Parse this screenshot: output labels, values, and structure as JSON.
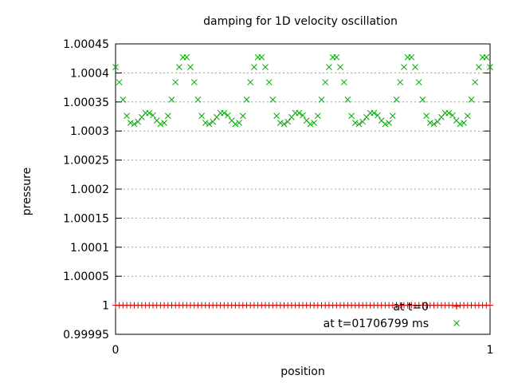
{
  "chart_data": {
    "type": "scatter",
    "title": "damping for 1D velocity oscillation",
    "xlabel": "position",
    "ylabel": "pressure",
    "xlim": [
      0,
      1
    ],
    "ylim": [
      0.99995,
      1.00045
    ],
    "x_ticks": [
      "0",
      "1"
    ],
    "y_ticks": [
      "0.99995",
      "1",
      "1.00005",
      "1.0001",
      "1.00015",
      "1.0002",
      "1.00025",
      "1.0003",
      "1.00035",
      "1.0004",
      "1.00045"
    ],
    "grid": "horizontal dotted",
    "legend_position": "bottom-right",
    "series": [
      {
        "name": "at t=0",
        "marker": "plus",
        "color": "#cc0000",
        "x": [
          0,
          0.01,
          0.02,
          0.03,
          0.04,
          0.05,
          0.06,
          0.07,
          0.08,
          0.09,
          0.1,
          0.11,
          0.12,
          0.13,
          0.14,
          0.15,
          0.16,
          0.17,
          0.18,
          0.19,
          0.2,
          0.21,
          0.22,
          0.23,
          0.24,
          0.25,
          0.26,
          0.27,
          0.28,
          0.29,
          0.3,
          0.31,
          0.32,
          0.33,
          0.34,
          0.35,
          0.36,
          0.37,
          0.38,
          0.39,
          0.4,
          0.41,
          0.42,
          0.43,
          0.44,
          0.45,
          0.46,
          0.47,
          0.48,
          0.49,
          0.5,
          0.51,
          0.52,
          0.53,
          0.54,
          0.55,
          0.56,
          0.57,
          0.58,
          0.59,
          0.6,
          0.61,
          0.62,
          0.63,
          0.64,
          0.65,
          0.66,
          0.67,
          0.68,
          0.69,
          0.7,
          0.71,
          0.72,
          0.73,
          0.74,
          0.75,
          0.76,
          0.77,
          0.78,
          0.79,
          0.8,
          0.81,
          0.82,
          0.83,
          0.84,
          0.85,
          0.86,
          0.87,
          0.88,
          0.89,
          0.9,
          0.91,
          0.92,
          0.93,
          0.94,
          0.95,
          0.96,
          0.97,
          0.98,
          0.99,
          1
        ],
        "y": [
          1,
          1,
          1,
          1,
          1,
          1,
          1,
          1,
          1,
          1,
          1,
          1,
          1,
          1,
          1,
          1,
          1,
          1,
          1,
          1,
          1,
          1,
          1,
          1,
          1,
          1,
          1,
          1,
          1,
          1,
          1,
          1,
          1,
          1,
          1,
          1,
          1,
          1,
          1,
          1,
          1,
          1,
          1,
          1,
          1,
          1,
          1,
          1,
          1,
          1,
          1,
          1,
          1,
          1,
          1,
          1,
          1,
          1,
          1,
          1,
          1,
          1,
          1,
          1,
          1,
          1,
          1,
          1,
          1,
          1,
          1,
          1,
          1,
          1,
          1,
          1,
          1,
          1,
          1,
          1,
          1,
          1,
          1,
          1,
          1,
          1,
          1,
          1,
          1,
          1,
          1,
          1,
          1,
          1,
          1,
          1,
          1,
          1,
          1,
          1,
          1
        ]
      },
      {
        "name": "at t=01706799 ms",
        "marker": "cross",
        "color": "#00aa00",
        "x": [
          0,
          0.01,
          0.02,
          0.03,
          0.04,
          0.05,
          0.06,
          0.07,
          0.08,
          0.09,
          0.1,
          0.11,
          0.12,
          0.13,
          0.14,
          0.15,
          0.16,
          0.17,
          0.18,
          0.19,
          0.2,
          0.21,
          0.22,
          0.23,
          0.24,
          0.25,
          0.26,
          0.27,
          0.28,
          0.29,
          0.3,
          0.31,
          0.32,
          0.33,
          0.34,
          0.35,
          0.36,
          0.37,
          0.38,
          0.39,
          0.4,
          0.41,
          0.42,
          0.43,
          0.44,
          0.45,
          0.46,
          0.47,
          0.48,
          0.49,
          0.5,
          0.51,
          0.52,
          0.53,
          0.54,
          0.55,
          0.56,
          0.57,
          0.58,
          0.59,
          0.6,
          0.61,
          0.62,
          0.63,
          0.64,
          0.65,
          0.66,
          0.67,
          0.68,
          0.69,
          0.7,
          0.71,
          0.72,
          0.73,
          0.74,
          0.75,
          0.76,
          0.77,
          0.78,
          0.79,
          0.8,
          0.81,
          0.82,
          0.83,
          0.84,
          0.85,
          0.86,
          0.87,
          0.88,
          0.89,
          0.9,
          0.91,
          0.92,
          0.93,
          0.94,
          0.95,
          0.96,
          0.97,
          0.98,
          0.99,
          1
        ],
        "y": [
          1.00041,
          1.000384,
          1.000354,
          1.000326,
          1.000314,
          1.000312,
          1.000316,
          1.000324,
          1.000331,
          1.000331,
          1.000327,
          1.000318,
          1.000312,
          1.000314,
          1.000326,
          1.000354,
          1.000384,
          1.00041,
          1.000427,
          1.000427,
          1.00041,
          1.000384,
          1.000354,
          1.000326,
          1.000314,
          1.000312,
          1.000316,
          1.000324,
          1.000331,
          1.000331,
          1.000327,
          1.000318,
          1.000312,
          1.000314,
          1.000326,
          1.000354,
          1.000384,
          1.00041,
          1.000427,
          1.000427,
          1.00041,
          1.000384,
          1.000354,
          1.000326,
          1.000314,
          1.000312,
          1.000316,
          1.000324,
          1.000331,
          1.000331,
          1.000327,
          1.000318,
          1.000312,
          1.000314,
          1.000326,
          1.000354,
          1.000384,
          1.00041,
          1.000427,
          1.000427,
          1.00041,
          1.000384,
          1.000354,
          1.000326,
          1.000314,
          1.000312,
          1.000316,
          1.000324,
          1.000331,
          1.000331,
          1.000327,
          1.000318,
          1.000312,
          1.000314,
          1.000326,
          1.000354,
          1.000384,
          1.00041,
          1.000427,
          1.000427,
          1.00041,
          1.000384,
          1.000354,
          1.000326,
          1.000314,
          1.000312,
          1.000316,
          1.000324,
          1.000331,
          1.000331,
          1.000327,
          1.000318,
          1.000312,
          1.000314,
          1.000326,
          1.000354,
          1.000384,
          1.00041,
          1.000427,
          1.000427,
          1.00041
        ]
      }
    ]
  }
}
